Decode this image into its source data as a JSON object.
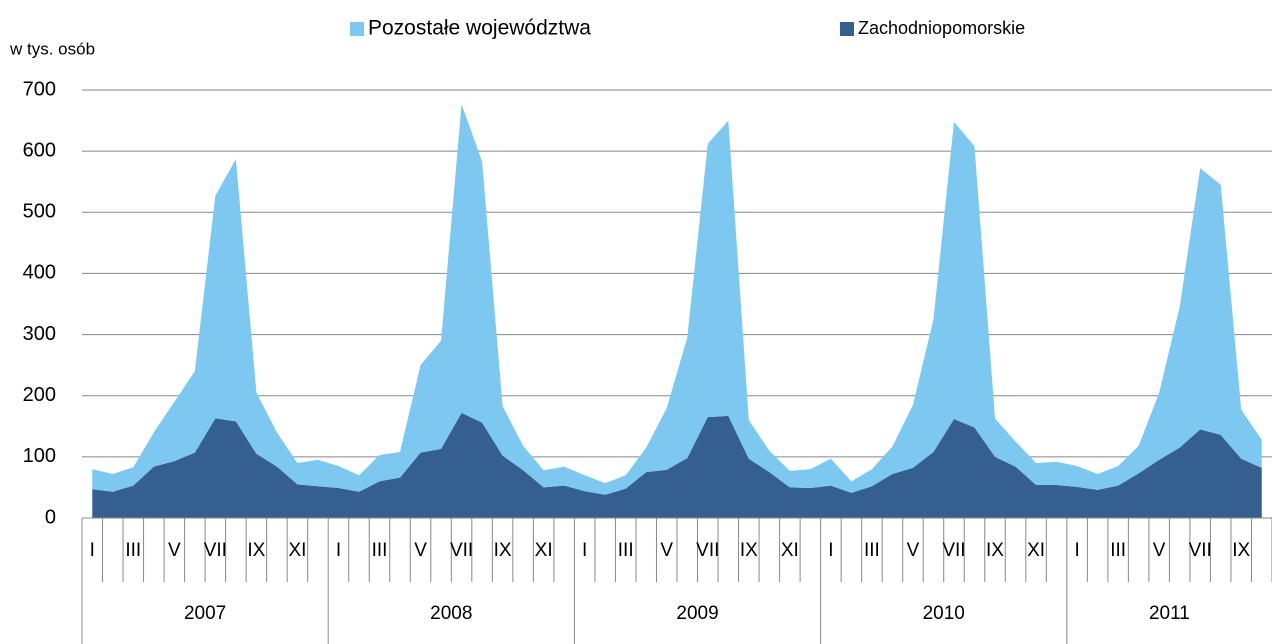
{
  "chart_data": {
    "type": "stacked_area",
    "y_label": "w tys. osób",
    "categories": [
      "I",
      null,
      "III",
      null,
      "V",
      null,
      "VII",
      null,
      "IX",
      null,
      "XI",
      null,
      "I",
      null,
      "III",
      null,
      "V",
      null,
      "VII",
      null,
      "IX",
      null,
      "XI",
      null,
      "I",
      null,
      "III",
      null,
      "V",
      null,
      "VII",
      null,
      "IX",
      null,
      "XI",
      null,
      "I",
      null,
      "III",
      null,
      "V",
      null,
      "VII",
      null,
      "IX",
      null,
      "XI",
      null,
      "I",
      null,
      "III",
      null,
      "V",
      null,
      "VII",
      null,
      "IX",
      null
    ],
    "years": [
      "2007",
      "2008",
      "2009",
      "2010",
      "2011"
    ],
    "series": [
      {
        "name": "Zachodniopomorskie",
        "color": "#355f8f",
        "values": [
          47,
          43,
          53,
          84,
          93,
          107,
          163,
          158,
          105,
          84,
          55,
          52,
          49,
          43,
          60,
          66,
          107,
          113,
          172,
          156,
          102,
          78,
          50,
          53,
          44,
          38,
          48,
          75,
          79,
          98,
          165,
          167,
          97,
          75,
          50,
          49,
          53,
          41,
          52,
          72,
          82,
          108,
          162,
          148,
          100,
          84,
          54,
          54,
          51,
          46,
          53,
          73,
          95,
          115,
          145,
          136,
          97,
          82
        ]
      },
      {
        "name": "Pozostałe województwa",
        "color": "#7dc8f1",
        "values": [
          33,
          29,
          30,
          56,
          97,
          133,
          364,
          429,
          100,
          56,
          35,
          43,
          36,
          27,
          43,
          42,
          143,
          177,
          505,
          427,
          81,
          40,
          28,
          31,
          26,
          19,
          22,
          40,
          101,
          197,
          447,
          483,
          63,
          35,
          27,
          31,
          44,
          19,
          28,
          45,
          103,
          217,
          486,
          460,
          63,
          41,
          36,
          38,
          34,
          26,
          32,
          45,
          110,
          230,
          427,
          409,
          80,
          46
        ]
      }
    ],
    "ylim": [
      0,
      700
    ],
    "yticks": [
      0,
      100,
      200,
      300,
      400,
      500,
      600,
      700
    ],
    "grid": true,
    "legend": "top"
  }
}
